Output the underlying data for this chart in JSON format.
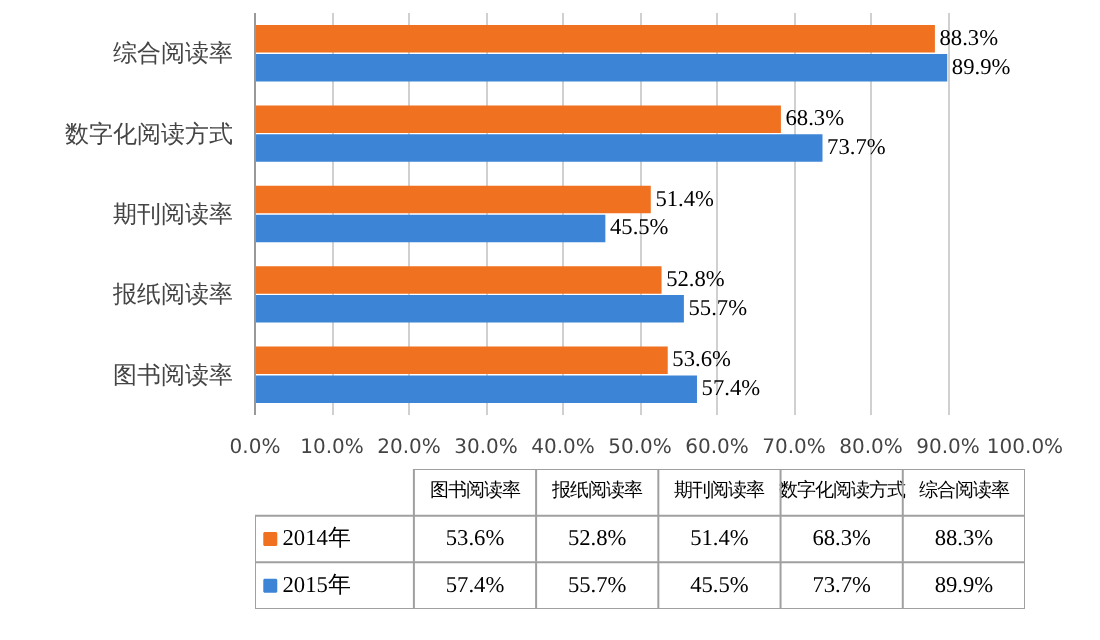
{
  "chart_data": {
    "type": "bar",
    "orientation": "horizontal",
    "categories": [
      "综合阅读率",
      "数字化阅读方式",
      "期刊阅读率",
      "报纸阅读率",
      "图书阅读率"
    ],
    "series": [
      {
        "name": "2014年",
        "color": "#f0711f",
        "values": [
          88.3,
          68.3,
          51.4,
          52.8,
          53.6
        ],
        "value_labels": [
          "88.3%",
          "68.3%",
          "51.4%",
          "52.8%",
          "53.6%"
        ]
      },
      {
        "name": "2015年",
        "color": "#3c85d6",
        "values": [
          89.9,
          73.7,
          45.5,
          55.7,
          57.4
        ],
        "value_labels": [
          "89.9%",
          "73.7%",
          "45.5%",
          "55.7%",
          "57.4%"
        ]
      }
    ],
    "xlim": [
      0,
      100
    ],
    "xticks": [
      {
        "value": 0,
        "label": "0.0%"
      },
      {
        "value": 10,
        "label": "10.0%"
      },
      {
        "value": 20,
        "label": "20.0%"
      },
      {
        "value": 30,
        "label": "30.0%"
      },
      {
        "value": 40,
        "label": "40.0%"
      },
      {
        "value": 50,
        "label": "50.0%"
      },
      {
        "value": 60,
        "label": "60.0%"
      },
      {
        "value": 70,
        "label": "70.0%"
      },
      {
        "value": 80,
        "label": "80.0%"
      },
      {
        "value": 90,
        "label": "90.0%"
      },
      {
        "value": 100,
        "label": "100.0%"
      }
    ],
    "grid": "x",
    "legend": "bottom"
  }
}
